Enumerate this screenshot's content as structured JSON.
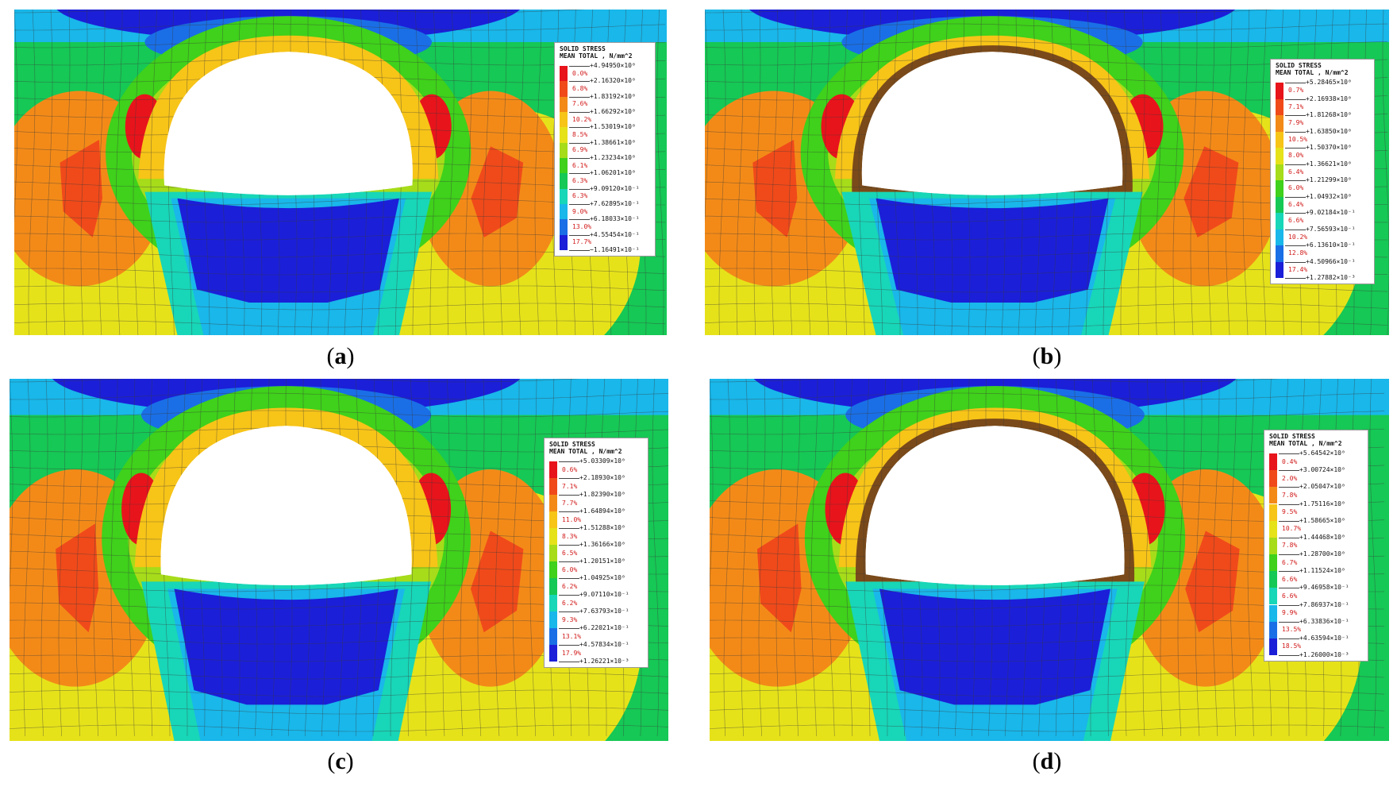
{
  "panels": [
    {
      "id": "a",
      "caption": "a",
      "legend": {
        "title1": "SOLID STRESS",
        "title2": "MEAN TOTAL , N/mm^2",
        "values": [
          "+4.94950×10⁰",
          "+2.16320×10⁰",
          "+1.83192×10⁰",
          "+1.66292×10⁰",
          "+1.53019×10⁰",
          "+1.38661×10⁰",
          "+1.23234×10⁰",
          "+1.06201×10⁰",
          "+9.09120×10⁻¹",
          "+7.62895×10⁻¹",
          "+6.18033×10⁻¹",
          "+4.55454×10⁻¹",
          "−1.16491×10⁻¹"
        ],
        "percents": [
          "0.0%",
          "6.8%",
          "7.6%",
          "10.2%",
          "8.5%",
          "6.9%",
          "6.1%",
          "6.3%",
          "6.3%",
          "9.0%",
          "13.0%",
          "17.7%"
        ]
      }
    },
    {
      "id": "b",
      "caption": "b",
      "legend": {
        "title1": "SOLID STRESS",
        "title2": "MEAN TOTAL , N/mm^2",
        "values": [
          "+5.28465×10⁰",
          "+2.16938×10⁰",
          "+1.81268×10⁰",
          "+1.63850×10⁰",
          "+1.50370×10⁰",
          "+1.36621×10⁰",
          "+1.21299×10⁰",
          "+1.04932×10⁰",
          "+9.02184×10⁻¹",
          "+7.56593×10⁻¹",
          "+6.13610×10⁻¹",
          "+4.50966×10⁻¹",
          "+1.27882×10⁻³"
        ],
        "percents": [
          "0.7%",
          "7.1%",
          "7.9%",
          "10.5%",
          "8.0%",
          "6.4%",
          "6.0%",
          "6.4%",
          "6.6%",
          "10.2%",
          "12.8%",
          "17.4%"
        ]
      }
    },
    {
      "id": "c",
      "caption": "c",
      "legend": {
        "title1": "SOLID STRESS",
        "title2": "MEAN TOTAL , N/mm^2",
        "values": [
          "+5.03309×10⁰",
          "+2.18930×10⁰",
          "+1.82390×10⁰",
          "+1.64894×10⁰",
          "+1.51288×10⁰",
          "+1.36166×10⁰",
          "+1.20151×10⁰",
          "+1.04925×10⁰",
          "+9.07110×10⁻¹",
          "+7.63793×10⁻¹",
          "+6.22021×10⁻¹",
          "+4.57834×10⁻¹",
          "+1.26221×10⁻³"
        ],
        "percents": [
          "0.6%",
          "7.1%",
          "7.7%",
          "11.0%",
          "8.3%",
          "6.5%",
          "6.0%",
          "6.2%",
          "6.2%",
          "9.3%",
          "13.1%",
          "17.9%"
        ]
      }
    },
    {
      "id": "d",
      "caption": "d",
      "legend": {
        "title1": "SOLID STRESS",
        "title2": "MEAN TOTAL , N/mm^2",
        "values": [
          "+5.64542×10⁰",
          "+3.00724×10⁰",
          "+2.05047×10⁰",
          "+1.75116×10⁰",
          "+1.58665×10⁰",
          "+1.44468×10⁰",
          "+1.28700×10⁰",
          "+1.11524×10⁰",
          "+9.46958×10⁻¹",
          "+7.86937×10⁻¹",
          "+6.33836×10⁻¹",
          "+4.63594×10⁻¹",
          "+1.26000×10⁻³"
        ],
        "percents": [
          "0.4%",
          "2.0%",
          "7.8%",
          "9.5%",
          "10.7%",
          "7.8%",
          "6.7%",
          "6.6%",
          "6.6%",
          "9.9%",
          "13.5%",
          "18.5%"
        ]
      }
    }
  ],
  "colors": {
    "scale": [
      "#e8141b",
      "#f04a1a",
      "#f38a18",
      "#f7c418",
      "#e6e21a",
      "#a6dc19",
      "#3fd11b",
      "#16c855",
      "#18d6b8",
      "#19b7ea",
      "#1a6fe6",
      "#1b1fd8"
    ],
    "mesh_line": "#3a3a3a"
  }
}
